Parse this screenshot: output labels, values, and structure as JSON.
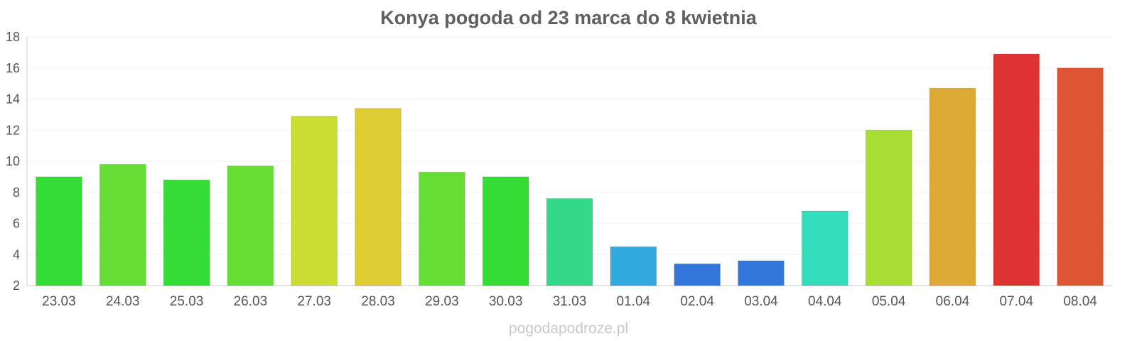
{
  "chart_data": {
    "type": "bar",
    "title": "Konya pogoda od 23 marca do 8 kwietnia",
    "xlabel": "",
    "ylabel": "",
    "ylim": [
      2,
      18
    ],
    "yticks": [
      2,
      4,
      6,
      8,
      10,
      12,
      14,
      16,
      18
    ],
    "grid": true,
    "categories": [
      "23.03",
      "24.03",
      "25.03",
      "26.03",
      "27.03",
      "28.03",
      "29.03",
      "30.03",
      "31.03",
      "01.04",
      "02.04",
      "03.04",
      "04.04",
      "05.04",
      "06.04",
      "07.04",
      "08.04"
    ],
    "values": [
      9.0,
      9.8,
      8.8,
      9.7,
      12.9,
      13.4,
      9.3,
      9.0,
      7.6,
      4.5,
      3.4,
      3.6,
      6.8,
      12.0,
      14.7,
      16.9,
      16.0
    ],
    "colors": [
      "#33dd33",
      "#66dd33",
      "#33dd33",
      "#66dd33",
      "#ccdd33",
      "#ddcc33",
      "#66dd33",
      "#33dd33",
      "#33d888",
      "#33aadd",
      "#3377dd",
      "#3377dd",
      "#33ddbb",
      "#aadd33",
      "#ddaa33",
      "#dd3333",
      "#dd5533"
    ]
  },
  "watermark": "pogodapodroze.pl"
}
